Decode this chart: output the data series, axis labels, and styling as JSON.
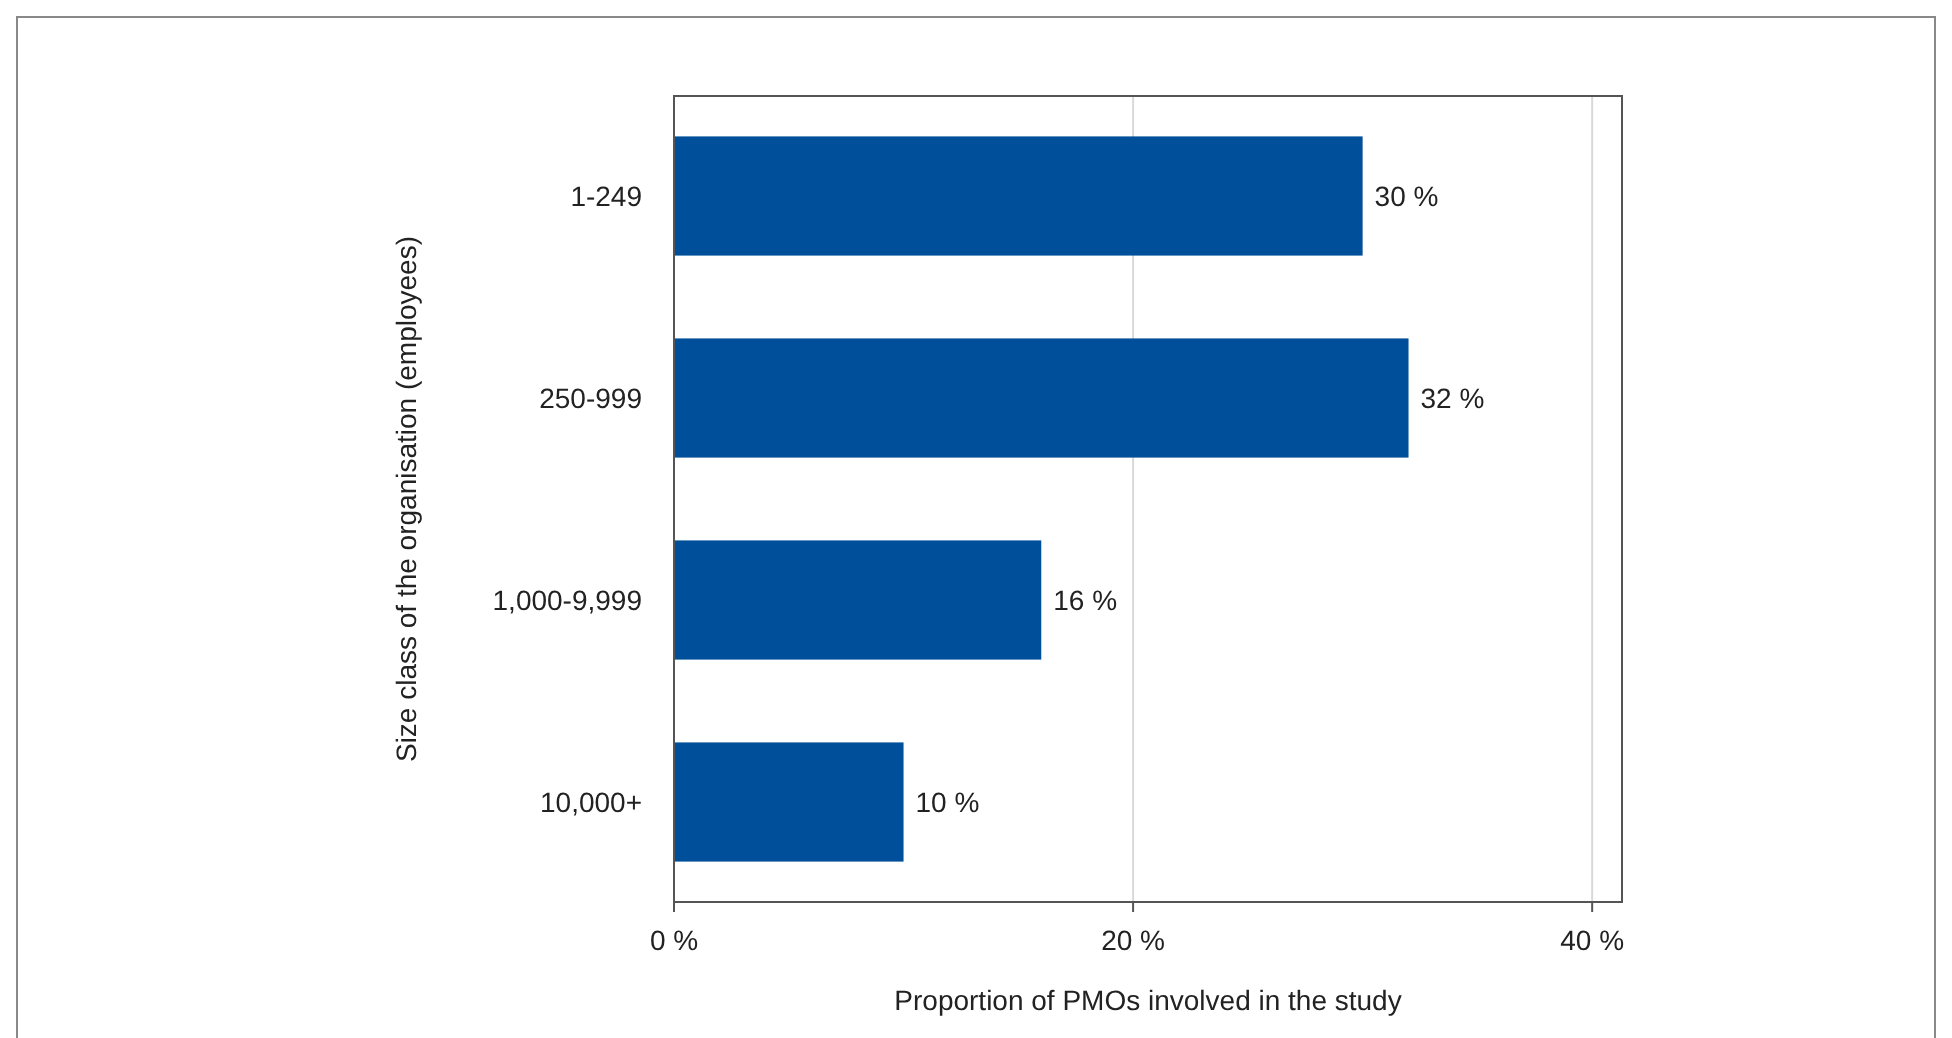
{
  "chart_data": {
    "type": "bar",
    "orientation": "horizontal",
    "categories": [
      "1-249",
      "250-999",
      "1,000-9,999",
      "10,000+"
    ],
    "values": [
      30,
      32,
      16,
      10
    ],
    "value_labels": [
      "30 %",
      "32 %",
      "16 %",
      "10 %"
    ],
    "color": "#004f9a",
    "xlim": [
      0,
      41.3
    ],
    "xticks": [
      {
        "value": 0,
        "label": "0 %"
      },
      {
        "value": 20,
        "label": "20 %"
      },
      {
        "value": 40,
        "label": "40 %"
      }
    ],
    "grid": "x",
    "xlabel": "Proportion of PMOs involved in the study",
    "ylabel": "Size class of the organisation (employees)"
  }
}
